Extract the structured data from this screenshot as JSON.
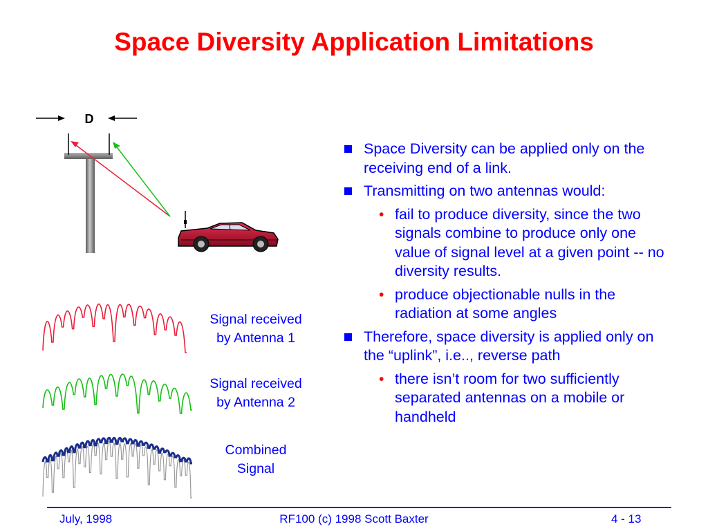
{
  "title": "Space Diversity Application Limitations",
  "diagram": {
    "distance_label": "D"
  },
  "signals": [
    {
      "label_line1": "Signal received",
      "label_line2": "by Antenna 1",
      "color": "#e8203a"
    },
    {
      "label_line1": "Signal received",
      "label_line2": "by Antenna 2",
      "color": "#18c018"
    },
    {
      "label_line1": "Combined",
      "label_line2": "Signal",
      "color": "#1a2e8c"
    }
  ],
  "bullets": [
    {
      "text": "Space Diversity can be applied only on the receiving end of a link."
    },
    {
      "text": "Transmitting on two antennas would:",
      "sub": [
        "fail to produce diversity, since the two signals combine to produce only one value of signal level at a given point -- no diversity results.",
        "produce objectionable nulls in the radiation at some angles"
      ]
    },
    {
      "text": "Therefore, space diversity is applied only on the “uplink”, i.e.., reverse path",
      "sub": [
        "there isn’t room for two sufficiently separated antennas on a mobile or handheld"
      ]
    }
  ],
  "footer": {
    "left": "July, 1998",
    "center": "RF100 (c) 1998 Scott Baxter",
    "right": "4 - 13"
  },
  "colors": {
    "title": "#ff0000",
    "text": "#0000ff",
    "car_body": "#c01030",
    "tower": "#808080"
  }
}
